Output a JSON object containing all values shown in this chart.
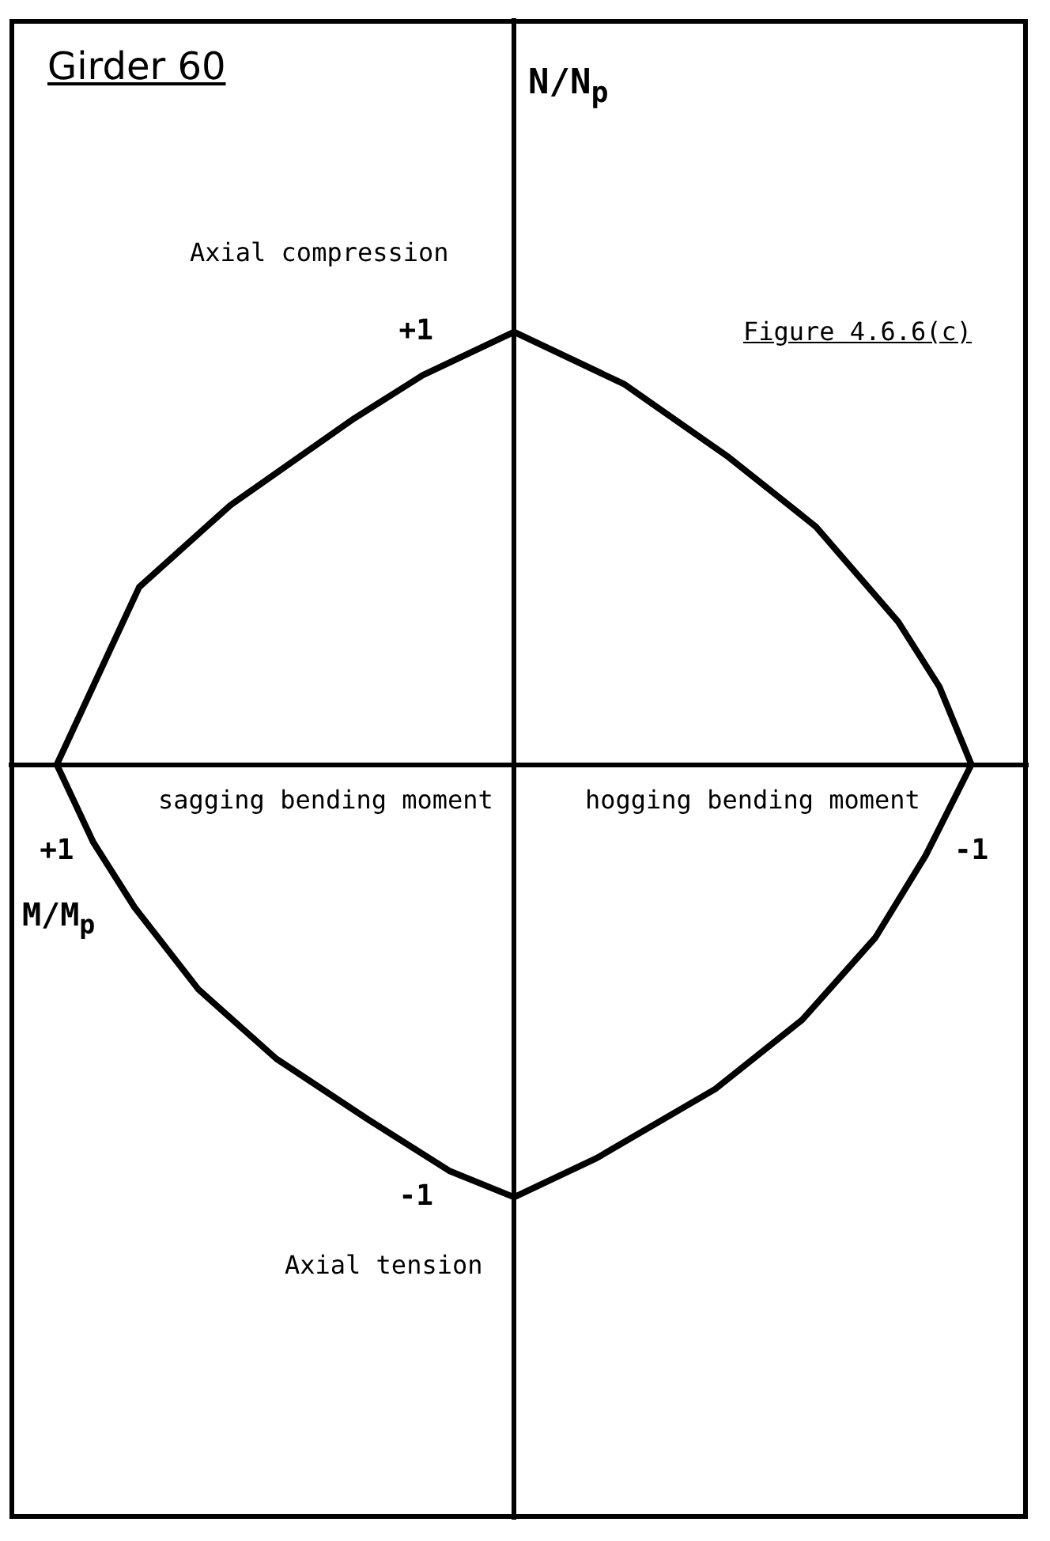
{
  "chart_data": {
    "type": "line",
    "title": "Girder 60",
    "xlabel": "M/M$_{p}$",
    "ylabel": "N/N$_{p}$",
    "annotations": [
      "Axial compression",
      "Axial tension",
      "sagging bending moment",
      "hogging bending moment",
      "Figure 4.6.6(c)"
    ],
    "series": [
      {
        "color": "#000000",
        "x": [
          -1,
          -0.93,
          -0.84,
          -0.66,
          -0.47,
          -0.24,
          0,
          0.2,
          0.35,
          0.62,
          0.82,
          1
        ],
        "values": [
          0,
          0.18,
          0.33,
          0.55,
          0.71,
          0.88,
          1,
          0.9,
          0.8,
          0.6,
          0.41,
          0
        ]
      },
      {
        "color": "#000000",
        "x": [
          -1,
          -0.9,
          -0.79,
          -0.63,
          -0.44,
          -0.18,
          0,
          0.14,
          0.32,
          0.52,
          0.69,
          0.83,
          0.92,
          1
        ],
        "values": [
          0,
          -0.21,
          -0.4,
          -0.59,
          -0.75,
          -0.91,
          -1,
          -0.94,
          -0.82,
          -0.68,
          -0.52,
          -0.33,
          -0.18,
          0
        ]
      }
    ],
    "xlim": [
      1.1,
      -1.12
    ],
    "ylim": [
      -1.74,
      1.72
    ],
    "xticks": [
      {
        "value": 1,
        "label": "+1"
      },
      {
        "value": -1,
        "label": "-1"
      }
    ],
    "yticks": [
      {
        "value": 1,
        "label": "+1"
      },
      {
        "value": -1,
        "label": "-1"
      }
    ],
    "grid": false,
    "legend": false,
    "marker": "none",
    "line_style": "solid"
  }
}
